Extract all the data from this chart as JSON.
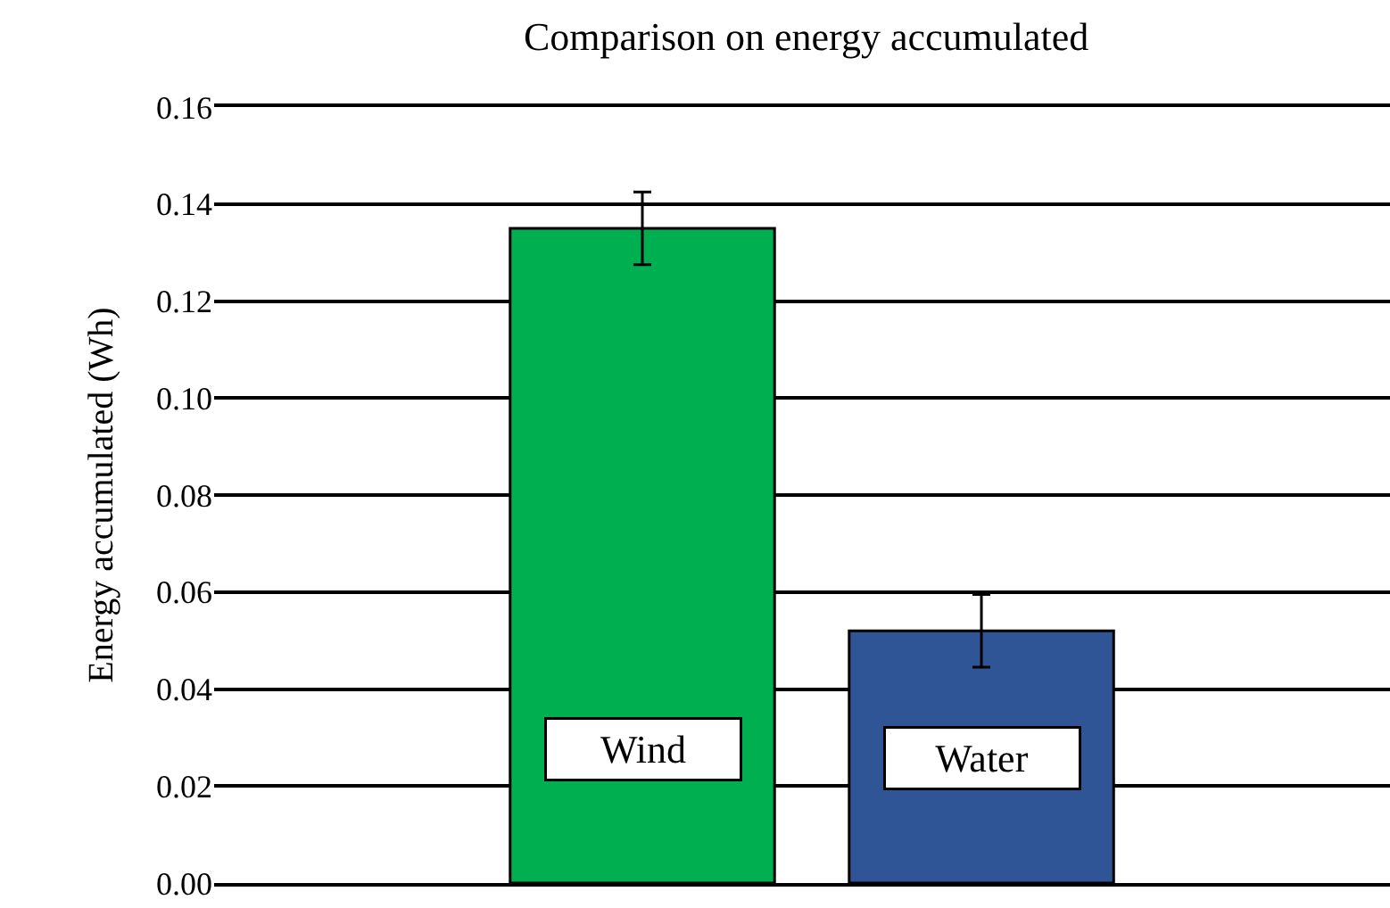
{
  "chart_data": {
    "type": "bar",
    "title": "Comparison on energy accumulated",
    "ylabel": "Energy accumulated (Wh)",
    "categories": [
      "Wind",
      "Water"
    ],
    "values": [
      0.135,
      0.052
    ],
    "colors": [
      "#00b050",
      "#2f5597"
    ],
    "errors": [
      0.0075,
      0.0075
    ],
    "ylim": [
      0,
      0.16
    ],
    "yticks": [
      {
        "value": 0,
        "label": "0.00"
      },
      {
        "value": 0.02,
        "label": "0.02"
      },
      {
        "value": 0.04,
        "label": "0.04"
      },
      {
        "value": 0.06,
        "label": "0.06"
      },
      {
        "value": 0.08,
        "label": "0.08"
      },
      {
        "value": 0.1,
        "label": "0.10"
      },
      {
        "value": 0.12,
        "label": "0.12"
      },
      {
        "value": 0.14,
        "label": "0.14"
      },
      {
        "value": 0.16,
        "label": "0.16"
      }
    ],
    "grid": "y",
    "tick_labels": "y"
  }
}
